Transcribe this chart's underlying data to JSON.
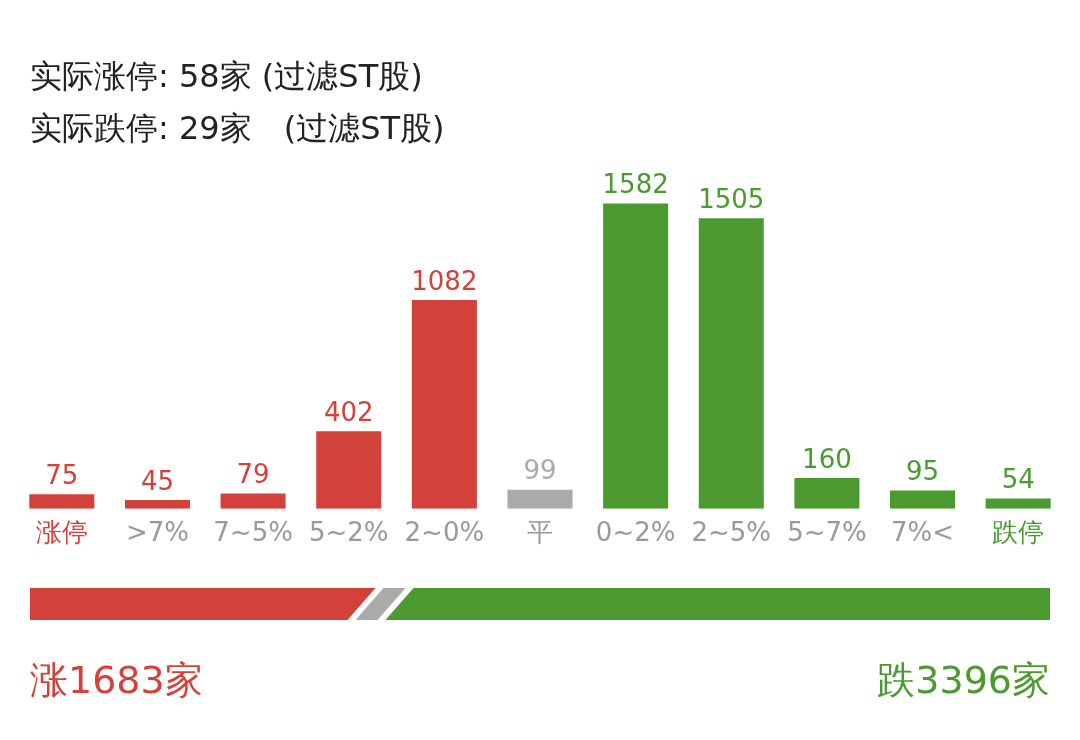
{
  "chart_data": {
    "type": "bar",
    "title": "实际涨停: 58家 (过滤ST股)",
    "subtitle": "实际跌停: 29家　(过滤ST股)",
    "categories": [
      "涨停",
      ">7%",
      "7~5%",
      "5~2%",
      "2~0%",
      "平",
      "0~2%",
      "2~5%",
      "5~7%",
      "7%<",
      "跌停"
    ],
    "values": [
      75,
      45,
      79,
      402,
      1082,
      99,
      1582,
      1505,
      160,
      95,
      54
    ],
    "colors": [
      "#d2423a",
      "#d2423a",
      "#d2423a",
      "#d2423a",
      "#d2423a",
      "#aaaaaa",
      "#4a9a2f",
      "#4a9a2f",
      "#4a9a2f",
      "#4a9a2f",
      "#4a9a2f"
    ],
    "data_labels": true,
    "grid": false,
    "legend": false,
    "annotations": [
      "涨1683家",
      "跌3396家"
    ]
  }
}
